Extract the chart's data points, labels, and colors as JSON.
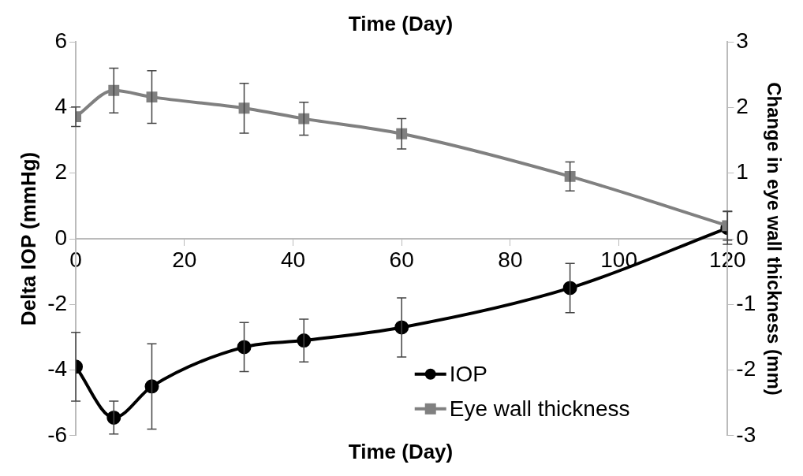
{
  "chart_data": {
    "type": "line",
    "title": "Time (Day)",
    "xlabel": "Time (Day)",
    "ylabel": "Delta IOP (mmHg)",
    "y2label": "Change in eye wall thickness (mm)",
    "x": [
      0,
      7,
      14,
      31,
      42,
      60,
      91,
      120
    ],
    "series": [
      {
        "name": "IOP",
        "color": "#000000",
        "marker": "circle",
        "values": [
          -3.9,
          -5.45,
          -4.5,
          -3.3,
          -3.1,
          -2.7,
          -1.5,
          0.33
        ],
        "errors": [
          1.05,
          0.5,
          1.3,
          0.75,
          0.65,
          0.9,
          0.75,
          0.5
        ]
      },
      {
        "name": "Eye wall thickness",
        "color": "#808080",
        "marker": "square",
        "axis": "y2",
        "values": [
          1.86,
          2.26,
          2.16,
          1.99,
          1.83,
          1.6,
          0.95,
          0.2
        ],
        "errors": [
          0.15,
          0.34,
          0.4,
          0.38,
          0.25,
          0.23,
          0.22,
          0.22
        ]
      }
    ],
    "xlim": [
      0,
      120
    ],
    "xticks": [
      0,
      20,
      40,
      60,
      80,
      100,
      120
    ],
    "ylim": [
      -6,
      6
    ],
    "yticks": [
      -6,
      -4,
      -2,
      0,
      2,
      4,
      6
    ],
    "y2lim": [
      -3,
      3
    ],
    "y2ticks": [
      -3,
      -2,
      -1,
      0,
      1,
      2,
      3
    ],
    "grid": false,
    "legend": "bottom right",
    "line_style": "solid"
  }
}
